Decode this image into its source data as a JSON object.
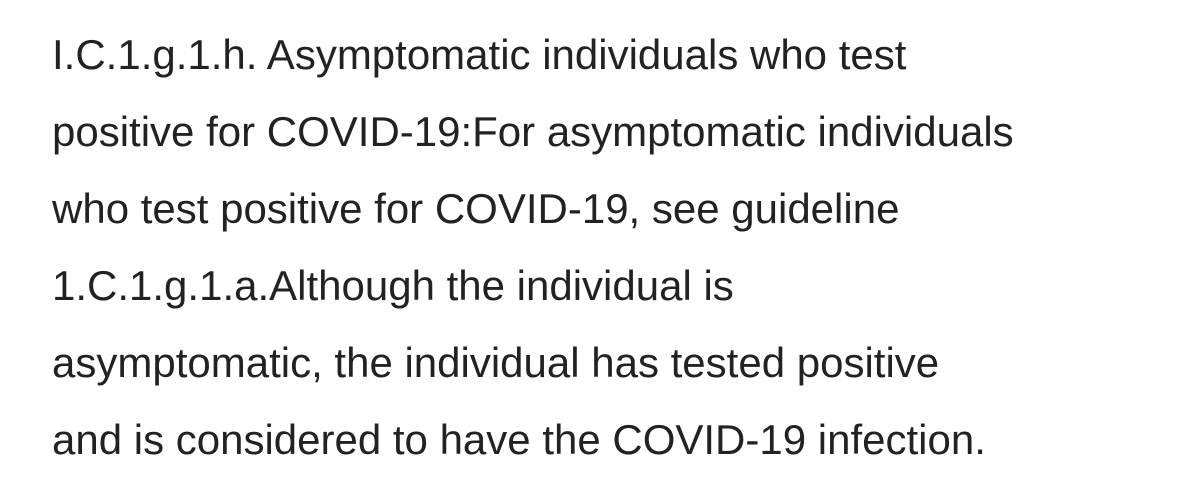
{
  "document": {
    "lines": [
      "I.C.1.g.1.h. Asymptomatic individuals who test",
      "positive for COVID-19:For asymptomatic individuals",
      "who test positive for COVID-19, see guideline",
      "1.C.1.g.1.a.Although the individual is",
      "asymptomatic, the individual has tested positive",
      "and is considered to have the COVID-19 infection."
    ]
  }
}
